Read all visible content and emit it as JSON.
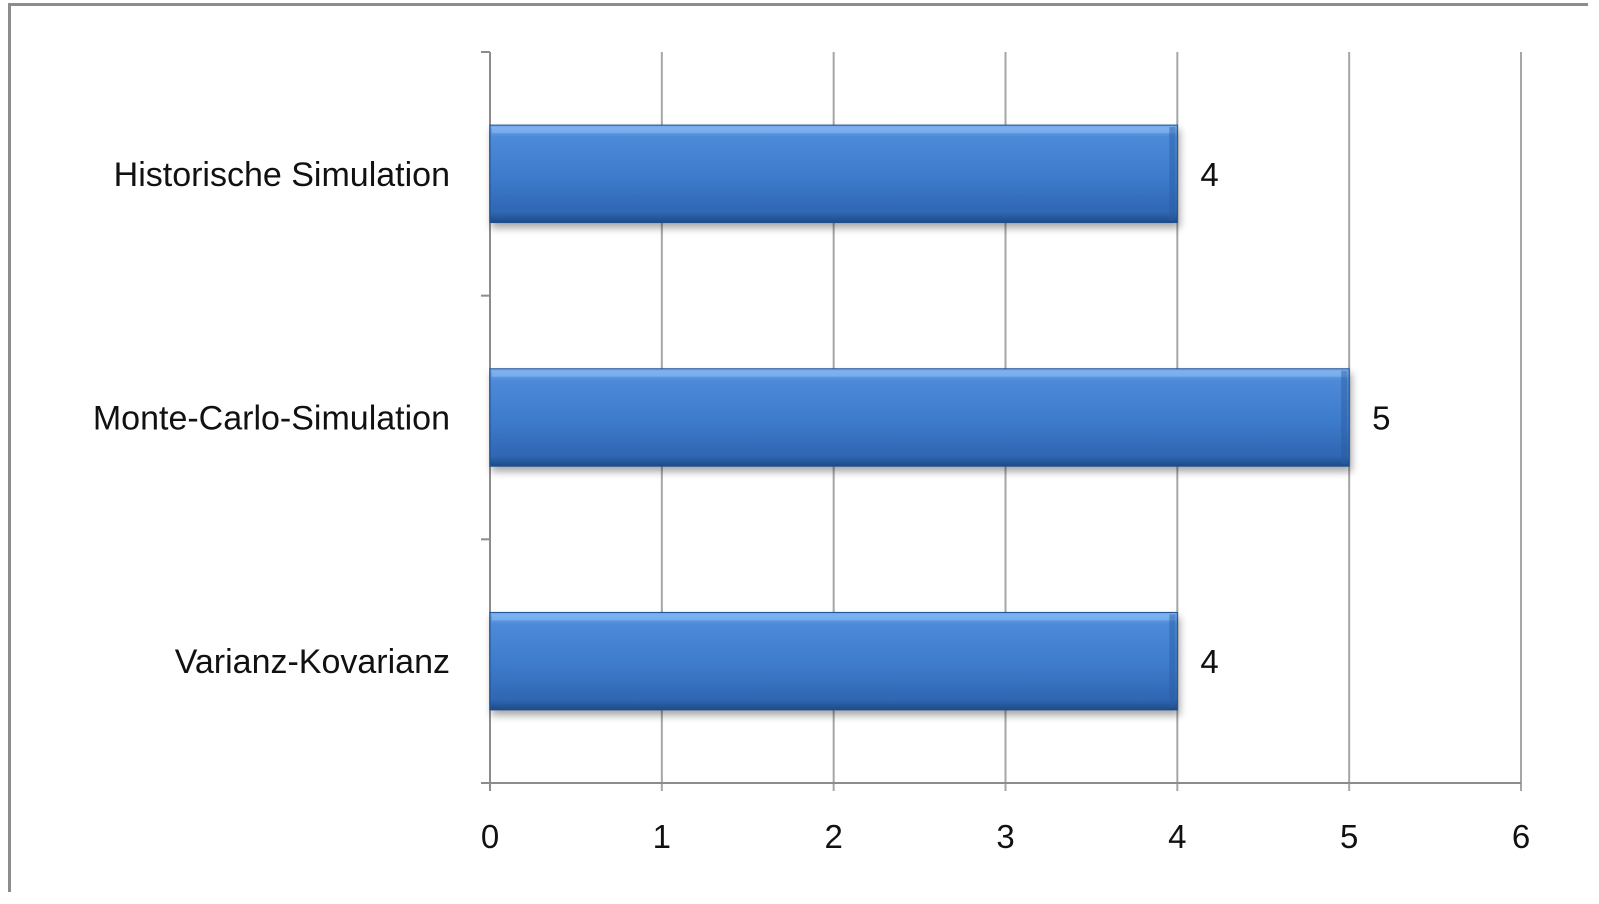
{
  "chart_data": {
    "type": "bar",
    "orientation": "horizontal",
    "categories": [
      "Historische Simulation",
      "Monte-Carlo-Simulation",
      "Varianz-Kovarianz"
    ],
    "values": [
      4,
      5,
      4
    ],
    "data_labels": [
      "4",
      "5",
      "4"
    ],
    "x_ticks": [
      "0",
      "1",
      "2",
      "3",
      "4",
      "5",
      "6"
    ],
    "xlim": [
      0,
      6
    ],
    "title": "",
    "xlabel": "",
    "ylabel": "",
    "grid": "vertical",
    "legend": "none",
    "colors": {
      "bar_fill": "#3f7fcf",
      "bar_highlight": "#6fa8e8",
      "bar_shadow": "#1f4f8f",
      "grid": "#a6a6a6"
    }
  }
}
